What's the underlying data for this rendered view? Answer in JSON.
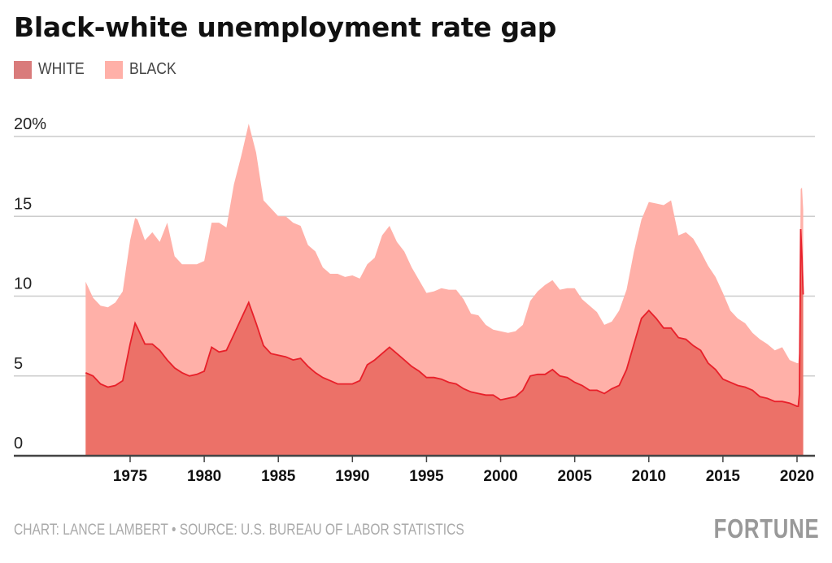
{
  "title": "Black-white unemployment rate gap",
  "legend": [
    {
      "label": "WHITE",
      "color": "#d97b7b"
    },
    {
      "label": "BLACK",
      "color": "#ffb0a8"
    }
  ],
  "footer": "CHART: LANCE LAMBERT • SOURCE: U.S. BUREAU OF LABOR STATISTICS",
  "logo": "FORTUNE",
  "colors": {
    "white_fill": "#ec7168",
    "white_line": "#e8202a",
    "black_fill": "#ffb0a8",
    "grid": "#cccccc",
    "axis": "#444444"
  },
  "chart_data": {
    "type": "area",
    "title": "Black-white unemployment rate gap",
    "ylim": [
      0,
      20
    ],
    "xlim": [
      1972,
      2020.5
    ],
    "yticks": [
      {
        "value": 0,
        "label": "0"
      },
      {
        "value": 5,
        "label": "5"
      },
      {
        "value": 10,
        "label": "10"
      },
      {
        "value": 15,
        "label": "15"
      },
      {
        "value": 20,
        "label": "20%"
      }
    ],
    "xticks": [
      "1975",
      "1980",
      "1985",
      "1990",
      "1995",
      "2000",
      "2005",
      "2010",
      "2015",
      "2020"
    ],
    "grid": true,
    "legend_position": "top-left",
    "x": [
      "1972-01",
      "1972-07",
      "1973-01",
      "1973-07",
      "1974-01",
      "1974-07",
      "1975-01",
      "1975-05",
      "1975-07",
      "1976-01",
      "1976-07",
      "1977-01",
      "1977-07",
      "1978-01",
      "1978-07",
      "1979-01",
      "1979-07",
      "1980-01",
      "1980-07",
      "1981-01",
      "1981-07",
      "1982-01",
      "1982-07",
      "1983-01",
      "1983-07",
      "1984-01",
      "1984-07",
      "1985-01",
      "1985-07",
      "1986-01",
      "1986-07",
      "1987-01",
      "1987-07",
      "1988-01",
      "1988-07",
      "1989-01",
      "1989-07",
      "1990-01",
      "1990-07",
      "1991-01",
      "1991-07",
      "1992-01",
      "1992-07",
      "1993-01",
      "1993-07",
      "1994-01",
      "1994-07",
      "1995-01",
      "1995-07",
      "1996-01",
      "1996-07",
      "1997-01",
      "1997-07",
      "1998-01",
      "1998-07",
      "1999-01",
      "1999-07",
      "2000-01",
      "2000-07",
      "2001-01",
      "2001-07",
      "2002-01",
      "2002-07",
      "2003-01",
      "2003-07",
      "2004-01",
      "2004-07",
      "2005-01",
      "2005-07",
      "2006-01",
      "2006-07",
      "2007-01",
      "2007-07",
      "2008-01",
      "2008-07",
      "2009-01",
      "2009-07",
      "2010-01",
      "2010-07",
      "2011-01",
      "2011-07",
      "2012-01",
      "2012-07",
      "2013-01",
      "2013-07",
      "2014-01",
      "2014-07",
      "2015-01",
      "2015-07",
      "2016-01",
      "2016-07",
      "2017-01",
      "2017-07",
      "2018-01",
      "2018-07",
      "2019-01",
      "2019-07",
      "2020-01",
      "2020-02",
      "2020-03",
      "2020-04",
      "2020-05",
      "2020-06"
    ],
    "series": [
      {
        "name": "WHITE",
        "values": [
          5.2,
          5.0,
          4.5,
          4.3,
          4.4,
          4.7,
          7.0,
          8.3,
          8.0,
          7.0,
          7.0,
          6.6,
          6.0,
          5.5,
          5.2,
          5.0,
          5.1,
          5.3,
          6.8,
          6.5,
          6.6,
          7.6,
          8.6,
          9.6,
          8.3,
          6.9,
          6.4,
          6.3,
          6.2,
          6.0,
          6.1,
          5.6,
          5.2,
          4.9,
          4.7,
          4.5,
          4.5,
          4.5,
          4.7,
          5.7,
          6.0,
          6.4,
          6.8,
          6.4,
          6.0,
          5.6,
          5.3,
          4.9,
          4.9,
          4.8,
          4.6,
          4.5,
          4.2,
          4.0,
          3.9,
          3.8,
          3.8,
          3.5,
          3.6,
          3.7,
          4.1,
          5.0,
          5.1,
          5.1,
          5.4,
          5.0,
          4.9,
          4.6,
          4.4,
          4.1,
          4.1,
          3.9,
          4.2,
          4.4,
          5.4,
          7.0,
          8.6,
          9.1,
          8.6,
          8.0,
          8.0,
          7.4,
          7.3,
          6.9,
          6.6,
          5.8,
          5.4,
          4.8,
          4.6,
          4.4,
          4.3,
          4.1,
          3.7,
          3.6,
          3.4,
          3.4,
          3.3,
          3.1,
          3.1,
          3.9,
          14.2,
          12.4,
          10.1
        ]
      },
      {
        "name": "BLACK",
        "values": [
          10.9,
          9.9,
          9.4,
          9.3,
          9.6,
          10.3,
          13.5,
          14.9,
          14.8,
          13.5,
          14.0,
          13.4,
          14.6,
          12.5,
          12.0,
          12.0,
          12.0,
          12.2,
          14.6,
          14.6,
          14.3,
          17.0,
          18.8,
          20.8,
          19.0,
          16.0,
          15.5,
          15.0,
          15.0,
          14.6,
          14.4,
          13.2,
          12.8,
          11.8,
          11.4,
          11.4,
          11.2,
          11.3,
          11.1,
          12.0,
          12.4,
          13.8,
          14.4,
          13.4,
          12.8,
          11.8,
          11.0,
          10.2,
          10.3,
          10.5,
          10.4,
          10.4,
          9.8,
          8.9,
          8.8,
          8.2,
          7.9,
          7.8,
          7.7,
          7.8,
          8.2,
          9.7,
          10.3,
          10.7,
          11.0,
          10.4,
          10.5,
          10.5,
          9.8,
          9.4,
          9.0,
          8.2,
          8.4,
          9.1,
          10.4,
          12.8,
          14.8,
          15.9,
          15.8,
          15.7,
          16.0,
          13.8,
          14.0,
          13.6,
          12.8,
          11.9,
          11.2,
          10.2,
          9.1,
          8.6,
          8.3,
          7.7,
          7.3,
          7.0,
          6.6,
          6.8,
          6.0,
          5.8,
          5.8,
          6.7,
          16.7,
          16.8,
          15.4
        ]
      }
    ]
  }
}
